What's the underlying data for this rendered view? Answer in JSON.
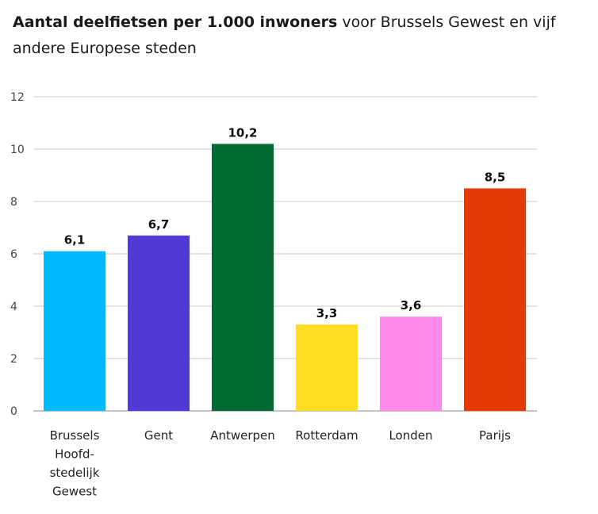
{
  "chart_data": {
    "type": "bar",
    "title_bold": "Aantal deelfietsen per 1.000 inwoners",
    "title_rest": " voor Brussels Gewest en vijf andere Europese steden",
    "xlabel": "",
    "ylabel": "",
    "ylim": [
      0,
      12
    ],
    "yticks": [
      "0",
      "2",
      "4",
      "6",
      "8",
      "10",
      "12"
    ],
    "grid": true,
    "categories": [
      [
        "Brussels",
        "Hoofd-",
        "stedelijk",
        "Gewest"
      ],
      [
        "Gent"
      ],
      [
        "Antwerpen"
      ],
      [
        "Rotterdam"
      ],
      [
        "Londen"
      ],
      [
        "Parijs"
      ]
    ],
    "values": [
      6.1,
      6.7,
      10.2,
      3.3,
      3.6,
      8.5
    ],
    "value_labels": [
      "6,1",
      "6,7",
      "10,2",
      "3,3",
      "3,6",
      "8,5"
    ],
    "colors": [
      "#00b9ff",
      "#4f3bd6",
      "#006a32",
      "#ffdd22",
      "#ff88e8",
      "#e63a05"
    ]
  }
}
